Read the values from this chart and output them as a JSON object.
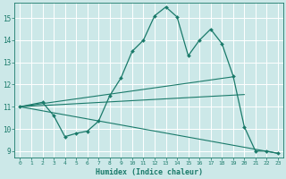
{
  "xlabel": "Humidex (Indice chaleur)",
  "ylabel": "",
  "xlim": [
    -0.5,
    23.5
  ],
  "ylim": [
    8.7,
    15.7
  ],
  "yticks": [
    9,
    10,
    11,
    12,
    13,
    14,
    15
  ],
  "xticks": [
    0,
    1,
    2,
    3,
    4,
    5,
    6,
    7,
    8,
    9,
    10,
    11,
    12,
    13,
    14,
    15,
    16,
    17,
    18,
    19,
    20,
    21,
    22,
    23
  ],
  "background_color": "#cce8e8",
  "grid_color": "#ffffff",
  "line_color": "#1a7a6a",
  "line1_x": [
    0,
    2,
    3,
    4,
    5,
    6,
    7,
    8,
    9,
    10,
    11,
    12,
    13,
    14,
    15,
    16,
    17,
    18,
    19,
    20,
    21,
    22,
    23
  ],
  "line1_y": [
    11.0,
    11.2,
    10.6,
    9.65,
    9.8,
    9.9,
    10.35,
    11.5,
    12.3,
    13.5,
    14.0,
    15.1,
    15.5,
    15.05,
    13.3,
    14.0,
    14.5,
    13.85,
    12.4,
    10.1,
    9.0,
    9.0,
    8.9
  ],
  "line2_x": [
    0,
    23
  ],
  "line2_y": [
    11.0,
    8.9
  ],
  "line3_x": [
    0,
    20
  ],
  "line3_y": [
    11.0,
    11.55
  ],
  "line4_x": [
    0,
    19
  ],
  "line4_y": [
    11.0,
    12.35
  ]
}
